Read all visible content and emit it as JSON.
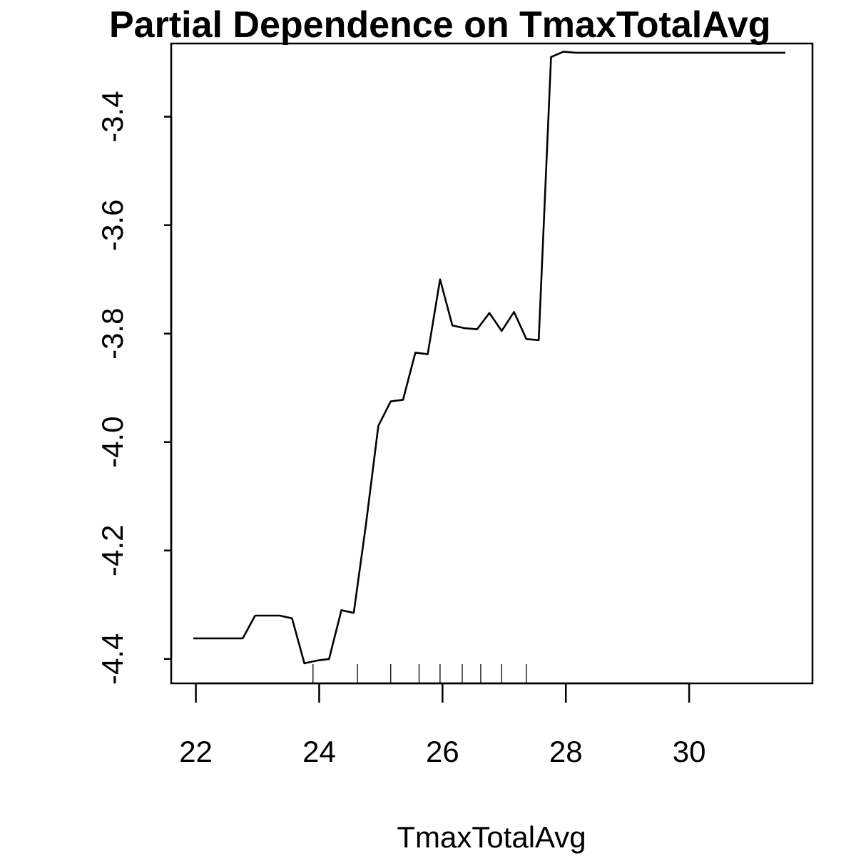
{
  "chart_data": {
    "type": "line",
    "title": "Partial Dependence on TmaxTotalAvg",
    "xlabel": "TmaxTotalAvg",
    "ylabel": "",
    "xlim": [
      21.6,
      32.0
    ],
    "ylim": [
      -4.445,
      -3.265
    ],
    "x_ticks": [
      22,
      24,
      26,
      28,
      30
    ],
    "x_tick_labels": [
      "22",
      "24",
      "26",
      "28",
      "30"
    ],
    "y_ticks": [
      -4.4,
      -4.2,
      -4.0,
      -3.8,
      -3.6,
      -3.4
    ],
    "y_tick_labels": [
      "-4.4",
      "-4.2",
      "-4.0",
      "-3.8",
      "-3.6",
      "-3.4"
    ],
    "grid": false,
    "series": [
      {
        "x": [
          21.96,
          22.76,
          22.96,
          23.36,
          23.56,
          23.76,
          23.96,
          24.16,
          24.36,
          24.56,
          24.76,
          24.96,
          25.16,
          25.36,
          25.56,
          25.76,
          25.96,
          26.16,
          26.36,
          26.56,
          26.76,
          26.96,
          27.16,
          27.36,
          27.56,
          27.76,
          27.96,
          28.16,
          31.56
        ],
        "y": [
          -4.362,
          -4.362,
          -4.32,
          -4.32,
          -4.325,
          -4.408,
          -4.403,
          -4.4,
          -4.31,
          -4.315,
          -4.15,
          -3.97,
          -3.925,
          -3.922,
          -3.835,
          -3.838,
          -3.7,
          -3.785,
          -3.79,
          -3.792,
          -3.762,
          -3.795,
          -3.76,
          -3.81,
          -3.812,
          -3.29,
          -3.28,
          -3.282,
          -3.282
        ]
      }
    ],
    "rug": [
      23.9,
      24.62,
      25.16,
      25.62,
      25.96,
      26.32,
      26.62,
      26.96,
      27.36
    ]
  }
}
